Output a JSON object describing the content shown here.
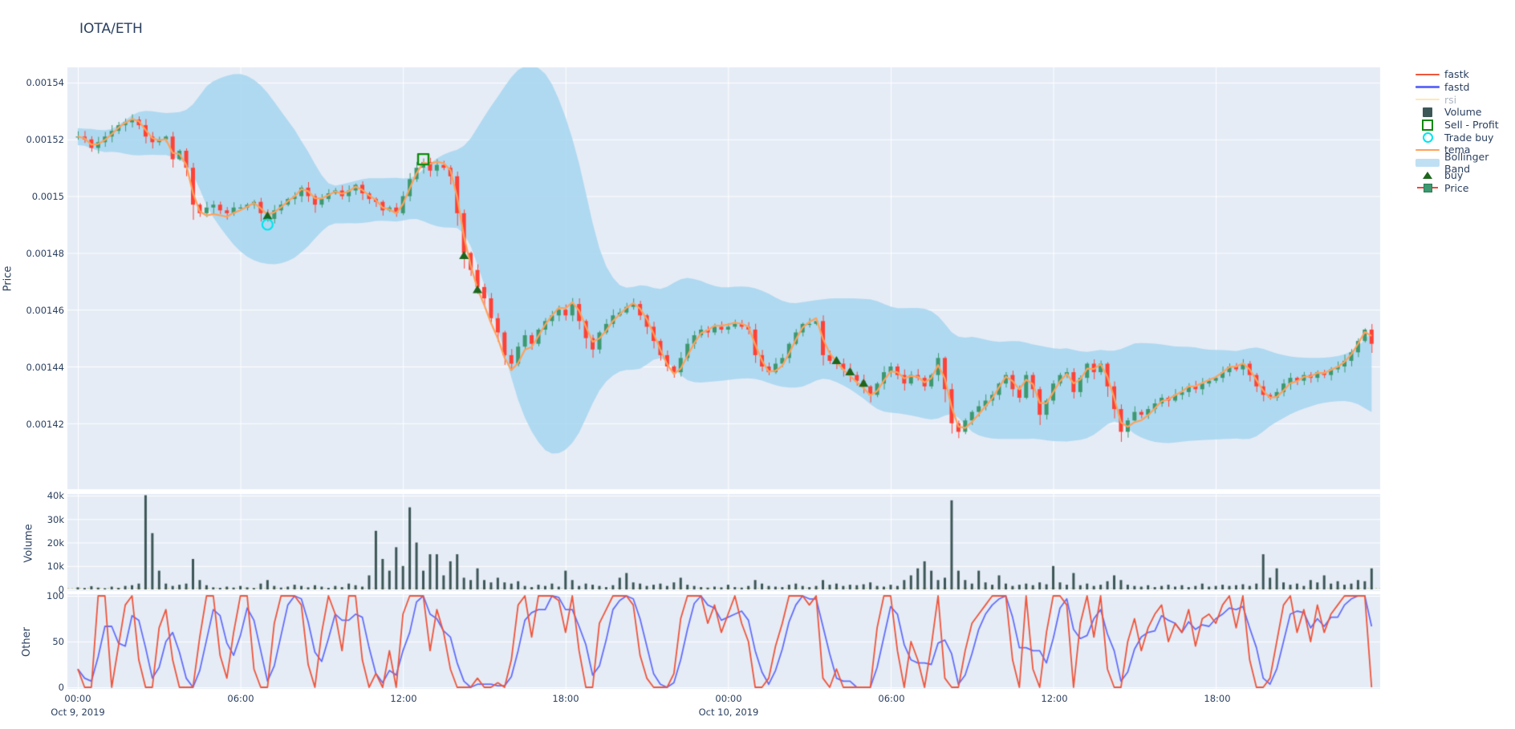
{
  "header": {
    "title": "IOTA/ETH"
  },
  "legend": {
    "items": [
      {
        "id": "fastk",
        "label": "fastk",
        "type": "line",
        "color": "#EF553B",
        "dimmed": false
      },
      {
        "id": "fastd",
        "label": "fastd",
        "type": "line",
        "color": "#636EFA",
        "dimmed": false
      },
      {
        "id": "rsi",
        "label": "rsi",
        "type": "line",
        "color": "#FECB52",
        "dimmed": true
      },
      {
        "id": "volume",
        "label": "Volume",
        "type": "square",
        "color": "#3D5656",
        "dimmed": false
      },
      {
        "id": "sell",
        "label": "Sell - Profit",
        "type": "open-square",
        "color": "#0b8a0b",
        "dimmed": false
      },
      {
        "id": "tradebuy",
        "label": "Trade buy",
        "type": "circle",
        "color": "#00E5EE",
        "dimmed": false
      },
      {
        "id": "tema",
        "label": "tema",
        "type": "line",
        "color": "#FFA15A",
        "dimmed": false
      },
      {
        "id": "bband",
        "label": "Bollinger Band",
        "type": "band",
        "color": "#BFE0F3",
        "dimmed": false
      },
      {
        "id": "buy",
        "label": "buy",
        "type": "triangle",
        "color": "#1d661d",
        "dimmed": false
      },
      {
        "id": "price",
        "label": "Price",
        "type": "candle",
        "color": "#3D9970",
        "dimmed": false
      }
    ]
  },
  "chart_data": {
    "type": "candlestick",
    "title": "IOTA/ETH",
    "start": "Oct 9, 2019 00:00",
    "interval_minutes": 15,
    "price_scale": 1e-06,
    "grid": true,
    "legend_position": "right",
    "panels": [
      {
        "name": "price",
        "ylabel": "Price",
        "ylim_microunits": [
          1396.8,
          1545.4
        ],
        "yticks": [
          "0.00154",
          "0.00152",
          "0.0015",
          "0.00148",
          "0.00146",
          "0.00144",
          "0.00142"
        ]
      },
      {
        "name": "volume",
        "ylabel": "Volume",
        "ylim": [
          0,
          40700
        ],
        "yticks": [
          "40k",
          "30k",
          "20k",
          "10k",
          "0"
        ]
      },
      {
        "name": "other",
        "ylabel": "Other",
        "ylim": [
          0,
          100
        ],
        "yticks": [
          "100",
          "50",
          "0"
        ]
      }
    ],
    "x_axis": {
      "ticks": [
        {
          "label": "00:00",
          "hour": 0
        },
        {
          "label": "06:00",
          "hour": 6
        },
        {
          "label": "12:00",
          "hour": 12
        },
        {
          "label": "18:00",
          "hour": 18
        },
        {
          "label": "00:00",
          "hour": 24
        },
        {
          "label": "06:00",
          "hour": 30
        },
        {
          "label": "12:00",
          "hour": 36
        },
        {
          "label": "18:00",
          "hour": 42
        }
      ],
      "dates": [
        {
          "label": "Oct 9, 2019",
          "hour": 0
        },
        {
          "label": "Oct 10, 2019",
          "hour": 24
        }
      ]
    },
    "colors": {
      "plot_bg": "#E5ECF6",
      "grid": "#FFFFFF",
      "text": "#2a3f5f",
      "candle_up": "#3D9970",
      "candle_down": "#FF4136",
      "tema": "#FFA15A",
      "bollinger_fill": "rgba(166,214,240,0.85)",
      "volume_bar": "#3D5656",
      "fastk": "#EF553B",
      "fastd": "#636EFA",
      "buy_marker": "#1d661d",
      "sell_marker": "#0b8a0b",
      "trade_buy_marker": "#00E5EE",
      "volume_threshold_line": "#cdd0a0"
    },
    "close_microunits": [
      1521,
      1520,
      1517,
      1519,
      1521,
      1523,
      1525,
      1526,
      1527,
      1525,
      1521,
      1519,
      1520,
      1521,
      1513,
      1516,
      1510,
      1497,
      1494,
      1496,
      1497,
      1495,
      1494,
      1496,
      1496,
      1497,
      1498,
      1494,
      1492,
      1495,
      1497,
      1499,
      1500,
      1503,
      1500,
      1497,
      1499,
      1501,
      1502,
      1500,
      1502,
      1504,
      1501,
      1499,
      1498,
      1495,
      1496,
      1494,
      1500,
      1506,
      1510,
      1512,
      1509,
      1511,
      1510,
      1507,
      1494,
      1480,
      1474,
      1468,
      1464,
      1457,
      1452,
      1444,
      1441,
      1447,
      1451,
      1448,
      1453,
      1456,
      1458,
      1460,
      1458,
      1462,
      1456,
      1450,
      1446,
      1452,
      1455,
      1458,
      1459,
      1461,
      1462,
      1458,
      1454,
      1449,
      1444,
      1440,
      1438,
      1443,
      1448,
      1451,
      1453,
      1452,
      1454,
      1453,
      1454,
      1455,
      1454,
      1453,
      1444,
      1440,
      1438,
      1441,
      1443,
      1448,
      1452,
      1455,
      1455,
      1456,
      1444,
      1442,
      1441,
      1439,
      1437,
      1435,
      1433,
      1430,
      1434,
      1438,
      1440,
      1437,
      1434,
      1437,
      1436,
      1433,
      1437,
      1443,
      1432,
      1420,
      1417,
      1421,
      1424,
      1426,
      1428,
      1430,
      1434,
      1437,
      1432,
      1429,
      1437,
      1432,
      1423,
      1428,
      1434,
      1437,
      1438,
      1431,
      1436,
      1441,
      1438,
      1441,
      1433,
      1425,
      1417,
      1421,
      1424,
      1423,
      1425,
      1427,
      1429,
      1428,
      1430,
      1431,
      1433,
      1432,
      1434,
      1435,
      1436,
      1438,
      1440,
      1439,
      1441,
      1437,
      1433,
      1430,
      1429,
      1431,
      1434,
      1436,
      1435,
      1437,
      1436,
      1438,
      1437,
      1439,
      1440,
      1442,
      1445,
      1449,
      1453,
      1448
    ],
    "volume": [
      900,
      600,
      1400,
      800,
      500,
      1200,
      700,
      1500,
      1800,
      2500,
      41000,
      24000,
      8000,
      2500,
      1500,
      2000,
      2500,
      13000,
      4000,
      1800,
      900,
      700,
      1200,
      800,
      1500,
      900,
      600,
      2500,
      4000,
      1500,
      800,
      1200,
      2000,
      1500,
      900,
      1800,
      1200,
      700,
      1500,
      1000,
      2500,
      1800,
      1200,
      6000,
      25000,
      13000,
      8000,
      18000,
      10000,
      35000,
      20000,
      8000,
      15000,
      15000,
      6000,
      12000,
      15000,
      5000,
      4000,
      9000,
      4000,
      3000,
      5000,
      3000,
      2500,
      3500,
      1500,
      1000,
      2000,
      1500,
      2500,
      1200,
      8000,
      4000,
      1500,
      2500,
      2000,
      1500,
      1000,
      1800,
      5000,
      7000,
      3000,
      2500,
      1500,
      2000,
      2500,
      1500,
      3000,
      5000,
      2000,
      1500,
      1000,
      800,
      1200,
      900,
      2000,
      1000,
      800,
      1500,
      4000,
      2500,
      1500,
      1200,
      1000,
      2000,
      2500,
      1500,
      1000,
      1500,
      4000,
      2000,
      2500,
      1500,
      2000,
      1800,
      2200,
      3000,
      1500,
      1200,
      2000,
      1500,
      4000,
      6000,
      9000,
      12000,
      8000,
      4000,
      5000,
      38000,
      8000,
      4000,
      2500,
      8000,
      3000,
      2000,
      6000,
      2500,
      1500,
      2000,
      2500,
      1800,
      3000,
      2200,
      10000,
      3000,
      2000,
      7000,
      1800,
      2500,
      1500,
      2000,
      3500,
      6000,
      4000,
      2000,
      1500,
      1200,
      1800,
      1000,
      1500,
      2000,
      1200,
      1800,
      1000,
      1500,
      2500,
      1200,
      1500,
      2000,
      1500,
      1800,
      2200,
      1500,
      2500,
      15000,
      5000,
      9000,
      3000,
      2000,
      2500,
      1500,
      4000,
      3000,
      6000,
      2500,
      3500,
      2000,
      2500,
      4000,
      3500,
      9000
    ],
    "fastk": [
      20,
      0,
      0,
      100,
      100,
      0,
      45,
      90,
      100,
      30,
      0,
      0,
      65,
      85,
      30,
      0,
      0,
      0,
      55,
      100,
      100,
      35,
      10,
      60,
      100,
      100,
      20,
      0,
      0,
      70,
      100,
      100,
      100,
      90,
      25,
      0,
      60,
      100,
      80,
      40,
      100,
      100,
      30,
      0,
      15,
      0,
      40,
      0,
      80,
      100,
      100,
      100,
      40,
      85,
      60,
      20,
      0,
      0,
      0,
      10,
      0,
      0,
      5,
      0,
      30,
      90,
      100,
      55,
      100,
      100,
      100,
      95,
      60,
      100,
      40,
      0,
      0,
      70,
      85,
      100,
      100,
      100,
      90,
      35,
      10,
      0,
      0,
      0,
      15,
      75,
      100,
      100,
      100,
      70,
      90,
      60,
      80,
      100,
      70,
      50,
      0,
      0,
      10,
      45,
      70,
      100,
      100,
      100,
      90,
      100,
      10,
      0,
      20,
      0,
      0,
      0,
      0,
      0,
      65,
      100,
      100,
      40,
      0,
      50,
      30,
      0,
      45,
      100,
      10,
      0,
      0,
      40,
      70,
      80,
      90,
      100,
      100,
      100,
      30,
      0,
      100,
      20,
      0,
      60,
      100,
      100,
      90,
      0,
      70,
      100,
      55,
      100,
      20,
      0,
      0,
      50,
      75,
      40,
      65,
      80,
      90,
      50,
      70,
      60,
      85,
      45,
      75,
      80,
      70,
      90,
      100,
      65,
      100,
      30,
      0,
      0,
      10,
      50,
      90,
      100,
      60,
      85,
      50,
      90,
      60,
      80,
      90,
      100,
      100,
      100,
      100,
      0
    ],
    "derived": {
      "fastd": "sma(fastk,3)",
      "tema": "tema(close,6)",
      "bollinger": "sma(close,20) +/- 2.5*rollingstd(close,20)",
      "rsi": "hidden (legend toggled off)"
    },
    "markers": {
      "buy": [
        {
          "i": 28,
          "p": 1493
        },
        {
          "i": 57,
          "p": 1479
        },
        {
          "i": 59,
          "p": 1467
        },
        {
          "i": 112,
          "p": 1442
        },
        {
          "i": 114,
          "p": 1438
        },
        {
          "i": 116,
          "p": 1434
        }
      ],
      "trade_buy": [
        {
          "i": 28,
          "p": 1490
        }
      ],
      "sell_profit": [
        {
          "i": 51,
          "p": 1513
        }
      ],
      "volume_threshold_microvalue": 600
    }
  }
}
